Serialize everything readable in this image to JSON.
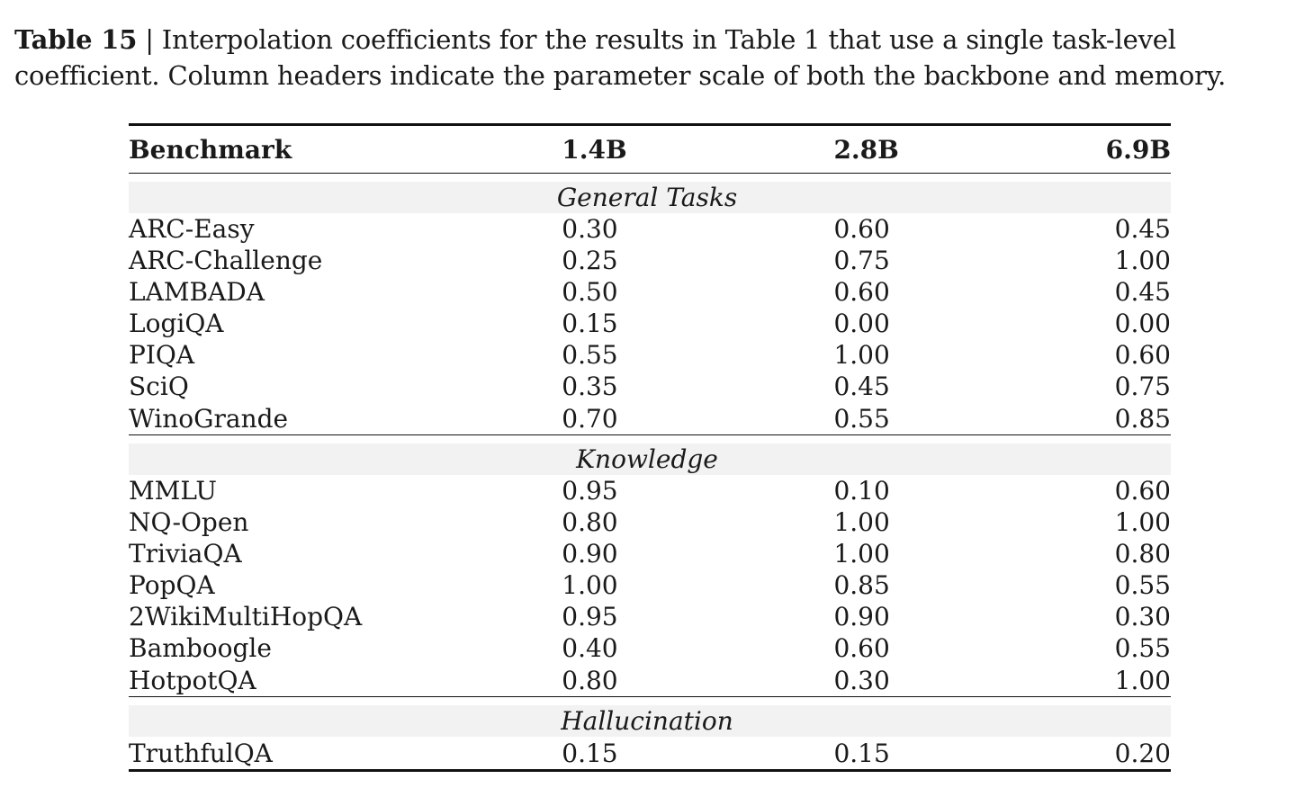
{
  "caption": {
    "label": "Table 15",
    "text": " | Interpolation coefficients for the results in Table 1 that use a single task-level coefficient. Column headers indicate the parameter scale of both the backbone and memory."
  },
  "table": {
    "headers": [
      "Benchmark",
      "1.4B",
      "2.8B",
      "6.9B"
    ],
    "sections": [
      {
        "title": "General Tasks",
        "rows": [
          [
            "ARC-Easy",
            "0.30",
            "0.60",
            "0.45"
          ],
          [
            "ARC-Challenge",
            "0.25",
            "0.75",
            "1.00"
          ],
          [
            "LAMBADA",
            "0.50",
            "0.60",
            "0.45"
          ],
          [
            "LogiQA",
            "0.15",
            "0.00",
            "0.00"
          ],
          [
            "PIQA",
            "0.55",
            "1.00",
            "0.60"
          ],
          [
            "SciQ",
            "0.35",
            "0.45",
            "0.75"
          ],
          [
            "WinoGrande",
            "0.70",
            "0.55",
            "0.85"
          ]
        ]
      },
      {
        "title": "Knowledge",
        "rows": [
          [
            "MMLU",
            "0.95",
            "0.10",
            "0.60"
          ],
          [
            "NQ-Open",
            "0.80",
            "1.00",
            "1.00"
          ],
          [
            "TriviaQA",
            "0.90",
            "1.00",
            "0.80"
          ],
          [
            "PopQA",
            "1.00",
            "0.85",
            "0.55"
          ],
          [
            "2WikiMultiHopQA",
            "0.95",
            "0.90",
            "0.30"
          ],
          [
            "Bamboogle",
            "0.40",
            "0.60",
            "0.55"
          ],
          [
            "HotpotQA",
            "0.80",
            "0.30",
            "1.00"
          ]
        ]
      },
      {
        "title": "Hallucination",
        "rows": [
          [
            "TruthfulQA",
            "0.15",
            "0.15",
            "0.20"
          ]
        ]
      }
    ]
  }
}
